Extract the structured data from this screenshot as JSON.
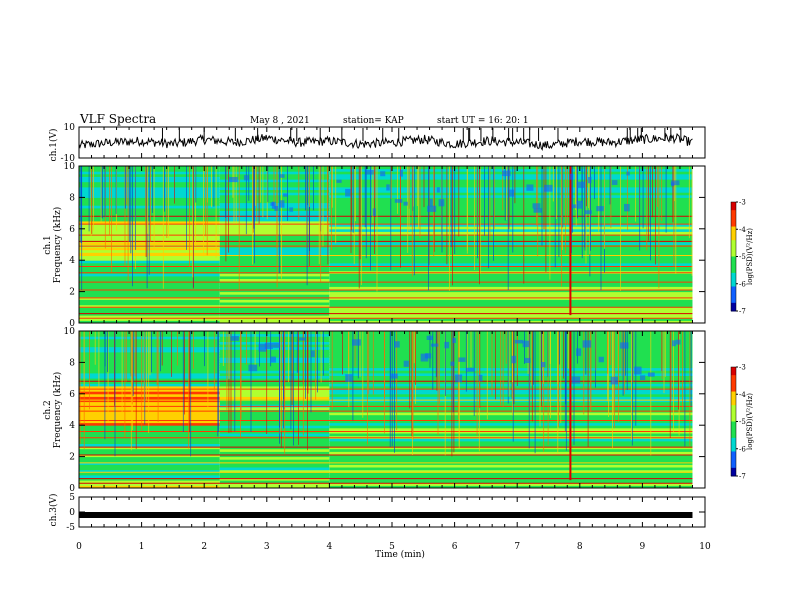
{
  "header": {
    "title": "VLF Spectra",
    "date": "May 8  , 2021",
    "station": "station= KAP",
    "start": "start  UT =   16: 20: 1"
  },
  "colorbar": {
    "label": "log(PSD)(V²/Hz)",
    "ticks": [
      "-3",
      "-4",
      "-5",
      "-6",
      "-7"
    ],
    "colors": [
      "#d80000",
      "#ff3a00",
      "#ffd000",
      "#b0ff30",
      "#20e050",
      "#00d8d0",
      "#1060ff",
      "#0000a0"
    ]
  },
  "chart_data": [
    {
      "type": "line",
      "ylabel": "ch.1(V)",
      "ylim": [
        -10,
        10
      ],
      "y_ticks": [
        "10",
        "-10"
      ],
      "description_values": "waveform roughly centered near 0 V, fluctuating between about -6 and +6 V",
      "x": [
        0,
        0.5,
        1,
        1.5,
        2,
        2.5,
        3,
        3.5,
        4,
        4.5,
        5,
        5.5,
        6,
        6.5,
        7,
        7.5,
        8,
        8.5,
        9,
        9.5,
        9.8
      ],
      "y": [
        -2,
        0,
        1,
        -1,
        2,
        0,
        3,
        0,
        1,
        -1,
        0,
        2,
        -1,
        1,
        0,
        -2,
        1,
        0,
        2,
        3,
        0
      ]
    },
    {
      "type": "heatmap",
      "ylabel": "ch.1\nFrequency  (kHz)",
      "ylim": [
        0,
        10
      ],
      "y_ticks": [
        "0",
        "2",
        "4",
        "6",
        "8",
        "10"
      ],
      "colorscale_range": [
        -7,
        -3
      ]
    },
    {
      "type": "heatmap",
      "ylabel": "ch.2\nFrequency  (kHz)",
      "ylim": [
        0,
        10
      ],
      "y_ticks": [
        "0",
        "2",
        "4",
        "6",
        "8",
        "10"
      ],
      "colorscale_range": [
        -7,
        -3
      ]
    },
    {
      "type": "line",
      "ylabel": "ch.3(V)",
      "ylim": [
        -5,
        5
      ],
      "y_ticks": [
        "5",
        "0",
        "-5"
      ],
      "x": [
        0,
        9.8
      ],
      "y": [
        -1,
        -1
      ]
    }
  ],
  "x_axis": {
    "label": "Time  (min)",
    "ticks": [
      "0",
      "1",
      "2",
      "3",
      "4",
      "5",
      "6",
      "7",
      "8",
      "9",
      "10"
    ],
    "range": [
      0,
      10
    ]
  }
}
